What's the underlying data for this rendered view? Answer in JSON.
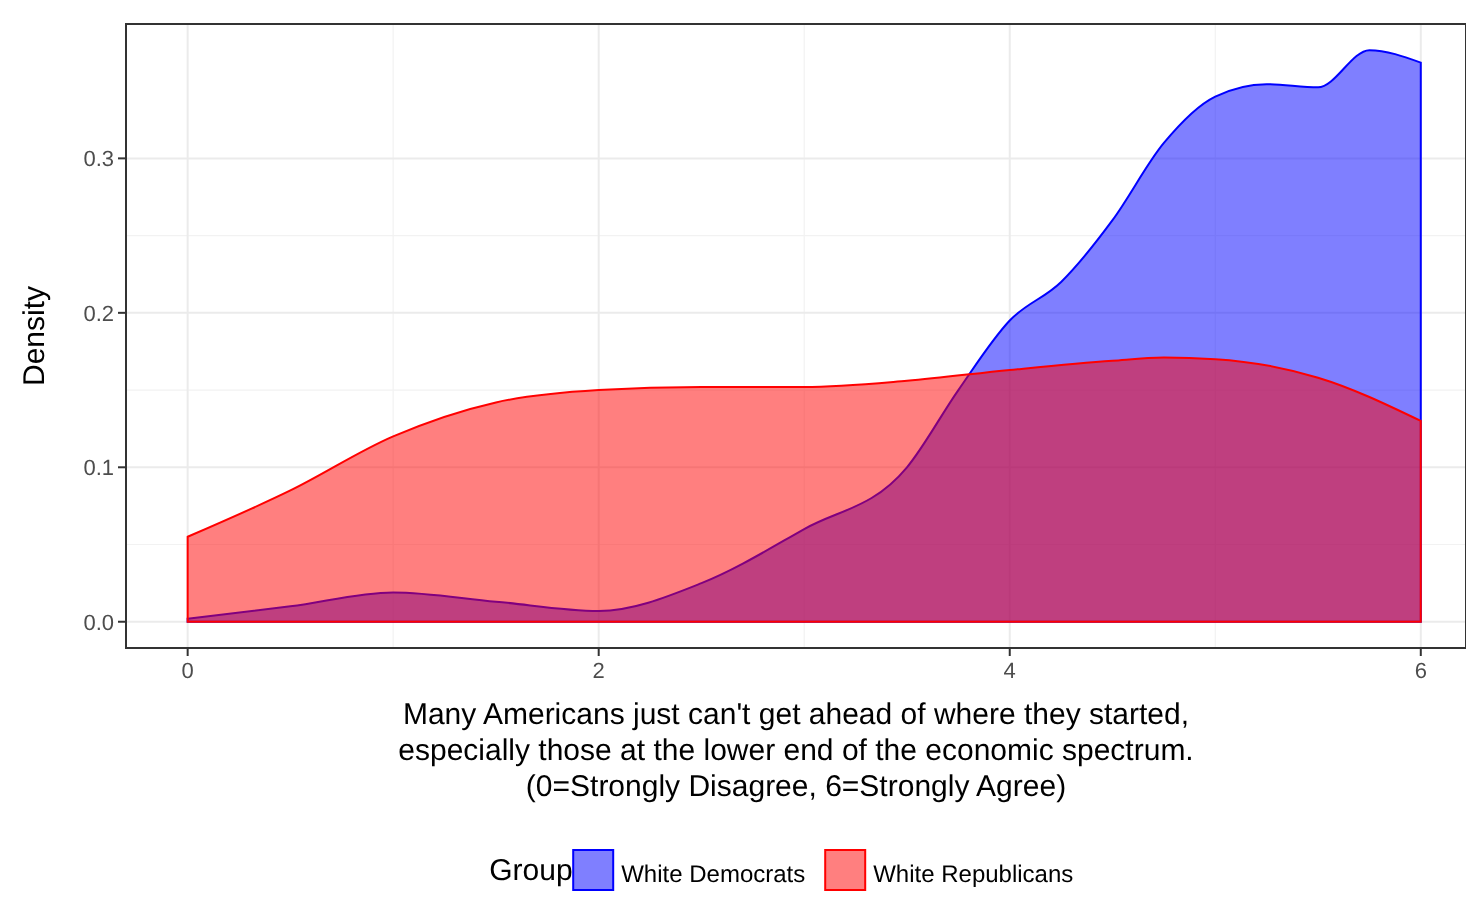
{
  "chart_data": {
    "type": "area",
    "xlabel": "Many Americans just can't get ahead of where they started,\nespecially those at the lower end of the economic spectrum.\n(0=Strongly Disagree, 6=Strongly Agree)",
    "ylabel": "Density",
    "legend_title": "Group",
    "legend": "bottom",
    "grid": true,
    "xlim": [
      -0.3,
      6.22
    ],
    "xticks": [
      0,
      2,
      4,
      6
    ],
    "ylim": [
      -0.017,
      0.387
    ],
    "yticks": [
      {
        "value": 0,
        "label": "0.0"
      },
      0.1,
      0.2,
      0.3
    ],
    "series": [
      {
        "name": "White Democrats",
        "color": "#0000ff",
        "x": [
          0,
          0.5,
          1,
          1.5,
          2,
          2.5,
          3,
          3.5,
          3.75,
          4,
          4.25,
          4.5,
          4.75,
          5,
          5.25,
          5.5,
          5.75,
          6
        ],
        "values": [
          0.002,
          0.01,
          0.019,
          0.013,
          0.007,
          0.025,
          0.06,
          0.1,
          0.15,
          0.195,
          0.22,
          0.26,
          0.31,
          0.34,
          0.348,
          0.346,
          0.37,
          0.362
        ]
      },
      {
        "name": "White Republicans",
        "color": "#ff0000",
        "x": [
          0,
          0.5,
          1,
          1.5,
          2,
          2.5,
          3,
          3.5,
          4,
          4.5,
          4.75,
          5,
          5.5,
          6
        ],
        "values": [
          0.055,
          0.085,
          0.12,
          0.142,
          0.15,
          0.152,
          0.152,
          0.156,
          0.163,
          0.169,
          0.171,
          0.17,
          0.158,
          0.13
        ]
      }
    ]
  }
}
